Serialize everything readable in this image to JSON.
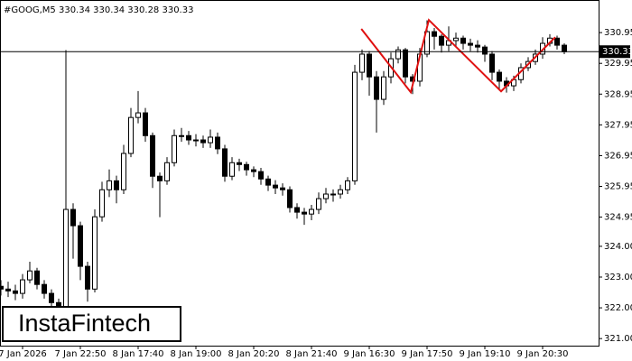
{
  "chart_data": {
    "type": "candlestick",
    "title": "#GOOG,M5  330.34 330.34 330.28 330.33",
    "watermark": "InstaFintech",
    "categories": [
      null,
      null,
      null,
      "7 Jan 2026",
      null,
      null,
      null,
      null,
      null,
      null,
      null,
      "7 Jan 22:50",
      null,
      null,
      null,
      null,
      null,
      null,
      null,
      "8 Jan 17:40",
      null,
      null,
      null,
      null,
      null,
      null,
      null,
      "8 Jan 19:00",
      null,
      null,
      null,
      null,
      null,
      null,
      null,
      "8 Jan 20:20",
      null,
      null,
      null,
      null,
      null,
      null,
      null,
      "8 Jan 21:40",
      null,
      null,
      null,
      null,
      null,
      null,
      null,
      "9 Jan 16:30",
      null,
      null,
      null,
      null,
      null,
      null,
      null,
      "9 Jan 17:50",
      null,
      null,
      null,
      null,
      null,
      null,
      null,
      "9 Jan 19:10",
      null,
      null,
      null,
      null,
      null,
      null,
      null,
      "9 Jan 20:30",
      null,
      null,
      null
    ],
    "open": [
      322.7,
      322.61,
      322.55,
      322.47,
      322.91,
      323.2,
      322.76,
      322.47,
      322.17,
      322.03,
      325.2,
      324.67,
      323.35,
      322.61,
      324.96,
      325.84,
      326.13,
      325.84,
      327.02,
      328.19,
      328.34,
      327.6,
      326.28,
      326.13,
      326.72,
      327.6,
      327.6,
      327.46,
      327.46,
      327.37,
      327.55,
      327.17,
      326.28,
      326.72,
      326.66,
      326.49,
      326.43,
      326.19,
      325.99,
      325.9,
      325.84,
      325.26,
      325.11,
      325.05,
      325.2,
      325.55,
      325.7,
      325.7,
      325.84,
      326.13,
      329.66,
      330.25,
      329.51,
      328.78,
      329.51,
      330.1,
      330.39,
      329.51,
      329.37,
      330.25,
      330.98,
      330.83,
      330.54,
      330.69,
      330.77,
      330.6,
      330.54,
      330.48,
      330.25,
      329.66,
      329.37,
      329.22,
      329.42,
      329.81,
      330.01,
      330.25,
      330.6,
      330.77,
      330.54
    ],
    "high": [
      322.9,
      322.85,
      322.75,
      323.1,
      323.5,
      323.3,
      322.9,
      322.6,
      322.3,
      330.38,
      325.4,
      324.8,
      323.5,
      325.2,
      326.1,
      326.5,
      326.3,
      327.3,
      328.5,
      329.05,
      328.5,
      327.7,
      326.4,
      326.9,
      327.8,
      327.85,
      327.75,
      327.65,
      327.6,
      327.8,
      327.7,
      327.3,
      326.9,
      326.85,
      326.75,
      326.6,
      326.55,
      326.3,
      326.15,
      326.05,
      325.95,
      325.4,
      325.25,
      325.35,
      325.75,
      325.9,
      325.85,
      326.0,
      326.25,
      329.9,
      330.4,
      330.35,
      329.7,
      329.7,
      330.3,
      330.5,
      330.45,
      329.6,
      330.45,
      331.35,
      331.1,
      330.9,
      331.15,
      330.95,
      330.85,
      330.75,
      330.7,
      330.55,
      330.35,
      329.75,
      329.5,
      329.55,
      329.95,
      330.15,
      330.4,
      330.8,
      330.9,
      330.85,
      330.6
    ],
    "low": [
      322.4,
      322.35,
      322.25,
      322.3,
      322.8,
      322.6,
      322.3,
      322.0,
      321.85,
      321.95,
      323.6,
      322.9,
      322.2,
      322.5,
      324.8,
      325.6,
      325.4,
      325.7,
      326.9,
      328.0,
      327.4,
      325.9,
      324.95,
      326.0,
      326.6,
      327.4,
      327.3,
      327.25,
      327.2,
      327.2,
      327.0,
      326.1,
      326.15,
      326.45,
      326.3,
      326.25,
      326.0,
      325.8,
      325.7,
      325.65,
      325.1,
      324.9,
      324.7,
      324.85,
      325.05,
      325.4,
      325.45,
      325.55,
      325.7,
      326.0,
      329.4,
      328.9,
      327.7,
      328.6,
      329.3,
      329.95,
      329.3,
      328.95,
      329.2,
      330.15,
      330.4,
      330.3,
      330.35,
      330.5,
      330.4,
      330.35,
      330.3,
      330.0,
      329.4,
      329.1,
      329.0,
      329.05,
      329.3,
      329.7,
      329.9,
      330.1,
      330.5,
      330.4,
      330.25
    ],
    "close": [
      322.61,
      322.55,
      322.47,
      322.91,
      323.2,
      322.76,
      322.47,
      322.17,
      322.03,
      325.2,
      324.67,
      323.35,
      322.61,
      324.96,
      325.84,
      326.13,
      325.84,
      327.02,
      328.19,
      328.34,
      327.6,
      326.28,
      326.13,
      326.72,
      327.6,
      327.6,
      327.46,
      327.46,
      327.37,
      327.55,
      327.17,
      326.28,
      326.72,
      326.66,
      326.49,
      326.43,
      326.19,
      325.99,
      325.9,
      325.84,
      325.26,
      325.11,
      325.05,
      325.2,
      325.55,
      325.7,
      325.7,
      325.84,
      326.13,
      329.66,
      330.25,
      329.51,
      328.78,
      329.51,
      330.1,
      330.39,
      329.51,
      329.37,
      330.25,
      330.98,
      330.83,
      330.54,
      330.69,
      330.77,
      330.6,
      330.54,
      330.48,
      330.25,
      329.66,
      329.37,
      329.22,
      329.42,
      329.81,
      330.01,
      330.25,
      330.6,
      330.77,
      330.54,
      330.33
    ],
    "up_color": "#ffffff",
    "down_color": "#000000",
    "current_price": 330.33,
    "pattern": {
      "color": "#e01010",
      "x": [
        49.9,
        56.75,
        59.25,
        69.25,
        76.75
      ],
      "y": [
        331.07,
        329.01,
        331.36,
        329.04,
        330.8
      ]
    },
    "ylim": [
      320.77,
      332.01
    ],
    "yticks": [
      330.95,
      329.95,
      328.95,
      327.95,
      326.95,
      325.95,
      324.95,
      {
        "value": 324,
        "label": "324.00"
      },
      {
        "value": 323,
        "label": "323.00"
      },
      {
        "value": 322,
        "label": "322.00"
      },
      {
        "value": 321,
        "label": "321.00"
      }
    ]
  }
}
